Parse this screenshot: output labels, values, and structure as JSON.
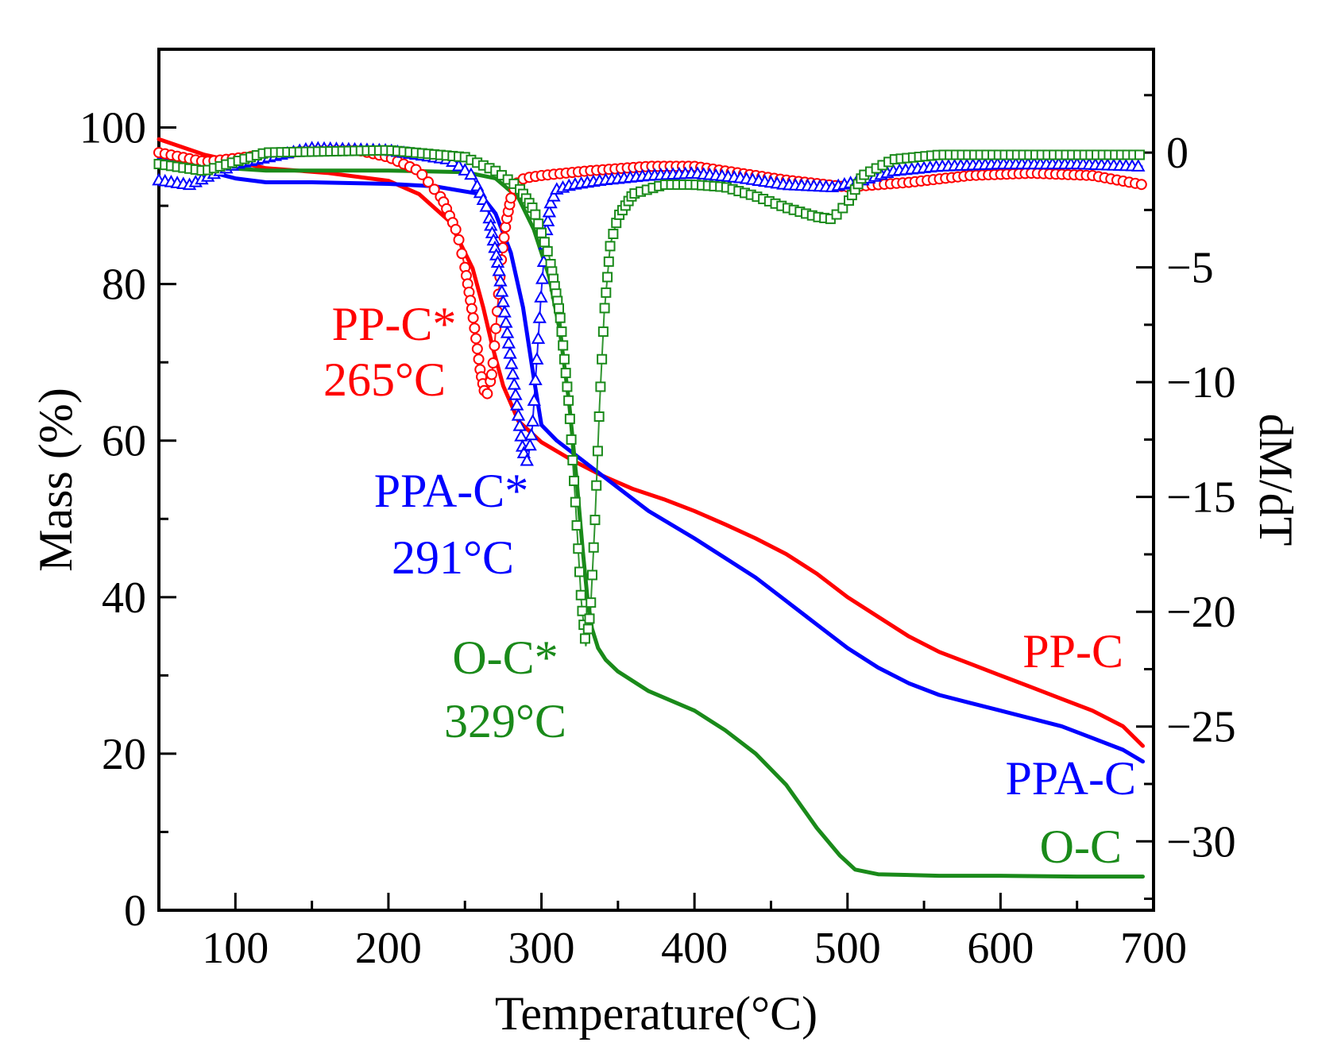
{
  "chart_data": {
    "type": "line",
    "title": "",
    "xlabel": "Temperature(°C)",
    "ylabel": "Mass (%)",
    "y2label": "dM/dT",
    "xlim": [
      50,
      700
    ],
    "ylim": [
      0,
      110
    ],
    "y2lim": [
      -33,
      4.5
    ],
    "x_ticks": [
      100,
      200,
      300,
      400,
      500,
      600,
      700
    ],
    "y_ticks": [
      0,
      20,
      40,
      60,
      80,
      100
    ],
    "y2_ticks": [
      0,
      -5,
      -10,
      -15,
      -20,
      -25,
      -30
    ],
    "x_tick_labels": [
      "100",
      "200",
      "300",
      "400",
      "500",
      "600",
      "700"
    ],
    "y_tick_labels": [
      "0",
      "20",
      "40",
      "60",
      "80",
      "100"
    ],
    "y2_tick_labels": [
      "0",
      "−5",
      "−10",
      "−15",
      "−20",
      "−25",
      "−30"
    ],
    "grid": false,
    "colors": {
      "pp": "#ff0000",
      "ppa": "#0000ff",
      "oc": "#1a8a1a"
    },
    "series": [
      {
        "name": "PP-C",
        "axis": "left",
        "style": "line",
        "color": "#ff0000",
        "x": [
          50,
          80,
          120,
          160,
          200,
          220,
          240,
          255,
          262,
          268,
          275,
          285,
          300,
          320,
          340,
          360,
          380,
          400,
          420,
          440,
          460,
          480,
          500,
          520,
          540,
          560,
          580,
          600,
          620,
          640,
          660,
          680,
          693
        ],
        "y": [
          98.5,
          96.5,
          94.8,
          94.2,
          93.2,
          91.5,
          88,
          82,
          77,
          72,
          67,
          62.5,
          59.8,
          57.5,
          55.5,
          53.8,
          52.5,
          51,
          49.3,
          47.5,
          45.5,
          43,
          40,
          37.5,
          35,
          33,
          31.5,
          30,
          28.5,
          27,
          25.5,
          23.5,
          21
        ]
      },
      {
        "name": "PPA-C",
        "axis": "left",
        "style": "line",
        "color": "#0000ff",
        "x": [
          50,
          80,
          100,
          120,
          150,
          200,
          230,
          260,
          270,
          280,
          288,
          295,
          300,
          310,
          330,
          350,
          370,
          400,
          420,
          440,
          460,
          480,
          500,
          520,
          540,
          560,
          580,
          600,
          620,
          640,
          660,
          680,
          693
        ],
        "y": [
          96,
          94.5,
          93.5,
          93,
          93,
          92.8,
          92.5,
          91.5,
          89,
          84,
          77,
          68,
          62,
          60,
          57,
          54,
          51,
          47.5,
          45,
          42.5,
          39.5,
          36.5,
          33.5,
          31,
          29,
          27.5,
          26.5,
          25.5,
          24.5,
          23.5,
          22,
          20.5,
          19
        ]
      },
      {
        "name": "O-C",
        "axis": "left",
        "style": "line",
        "color": "#1a8a1a",
        "x": [
          50,
          80,
          120,
          200,
          250,
          270,
          285,
          295,
          305,
          312,
          318,
          323,
          327,
          330,
          333,
          337,
          342,
          350,
          370,
          400,
          420,
          440,
          460,
          480,
          495,
          505,
          520,
          560,
          600,
          650,
          693
        ],
        "y": [
          96.5,
          95,
          94.5,
          94.5,
          94.3,
          93.5,
          91,
          87,
          81,
          74,
          65,
          55,
          46,
          40,
          36,
          33.5,
          32,
          30.5,
          28,
          25.5,
          23,
          20,
          16,
          10.5,
          7,
          5.2,
          4.6,
          4.4,
          4.4,
          4.3,
          4.3
        ]
      },
      {
        "name": "PP-C*",
        "axis": "right",
        "style": "marker",
        "marker": "circle",
        "color": "#ff0000",
        "x": [
          50,
          80,
          120,
          150,
          180,
          200,
          220,
          235,
          245,
          250,
          255,
          260,
          263,
          265,
          268,
          271,
          274,
          277,
          280,
          283,
          286,
          290,
          300,
          330,
          370,
          400,
          430,
          460,
          500,
          540,
          580,
          620,
          660,
          693
        ],
        "y": [
          0,
          -0.4,
          -0.1,
          0.1,
          0.1,
          -0.2,
          -0.8,
          -2,
          -3.5,
          -5,
          -7,
          -9.5,
          -10.5,
          -10.5,
          -9.5,
          -7,
          -4.5,
          -3,
          -2,
          -1.4,
          -1.2,
          -1.1,
          -1,
          -0.8,
          -0.6,
          -0.6,
          -0.9,
          -1.2,
          -1.5,
          -1.3,
          -1.0,
          -0.9,
          -1.0,
          -1.4
        ]
      },
      {
        "name": "PPA-C*",
        "axis": "right",
        "style": "marker",
        "marker": "triangle",
        "color": "#0000ff",
        "x": [
          50,
          70,
          100,
          150,
          200,
          240,
          255,
          265,
          272,
          278,
          284,
          288,
          291,
          294,
          297,
          300,
          303,
          306,
          310,
          320,
          340,
          370,
          400,
          430,
          460,
          490,
          510,
          530,
          560,
          600,
          650,
          693
        ],
        "y": [
          -1.2,
          -1.4,
          -0.5,
          0.2,
          0.1,
          -0.3,
          -1,
          -2.5,
          -5,
          -8,
          -11,
          -13,
          -13.5,
          -12,
          -9,
          -6,
          -3.5,
          -2.2,
          -1.6,
          -1.4,
          -1.2,
          -1.0,
          -0.9,
          -1.1,
          -1.4,
          -1.5,
          -1.2,
          -0.8,
          -0.6,
          -0.5,
          -0.5,
          -0.6
        ]
      },
      {
        "name": "O-C*",
        "axis": "right",
        "style": "marker",
        "marker": "square",
        "color": "#1a8a1a",
        "x": [
          50,
          80,
          120,
          200,
          250,
          270,
          285,
          295,
          305,
          312,
          318,
          322,
          326,
          329,
          332,
          335,
          338,
          341,
          345,
          350,
          360,
          380,
          400,
          420,
          440,
          460,
          480,
          490,
          500,
          510,
          530,
          560,
          600,
          650,
          693
        ],
        "y": [
          -0.5,
          -0.8,
          0,
          0.1,
          -0.2,
          -0.8,
          -1.5,
          -2.5,
          -4.5,
          -7,
          -11,
          -15,
          -19.5,
          -21.5,
          -20,
          -16,
          -11,
          -7,
          -4,
          -2.8,
          -1.8,
          -1.4,
          -1.4,
          -1.5,
          -1.9,
          -2.4,
          -2.8,
          -2.9,
          -2.2,
          -1,
          -0.3,
          -0.1,
          -0.1,
          -0.1,
          -0.1
        ]
      }
    ],
    "annotations": [
      {
        "id": "ann-ppc-name",
        "text": "PP-C*",
        "color": "#ff0000"
      },
      {
        "id": "ann-ppc-temp",
        "text": "265°C",
        "color": "#ff0000"
      },
      {
        "id": "ann-ppac-name",
        "text": "PPA-C*",
        "color": "#0000ff"
      },
      {
        "id": "ann-ppac-temp",
        "text": "291°C",
        "color": "#0000ff"
      },
      {
        "id": "ann-oc-name",
        "text": "O-C*",
        "color": "#1a8a1a"
      },
      {
        "id": "ann-oc-temp",
        "text": "329°C",
        "color": "#1a8a1a"
      },
      {
        "id": "lab-ppc",
        "text": "PP-C",
        "color": "#ff0000"
      },
      {
        "id": "lab-ppac",
        "text": "PPA-C",
        "color": "#0000ff"
      },
      {
        "id": "lab-oc",
        "text": "O-C",
        "color": "#1a8a1a"
      }
    ]
  }
}
